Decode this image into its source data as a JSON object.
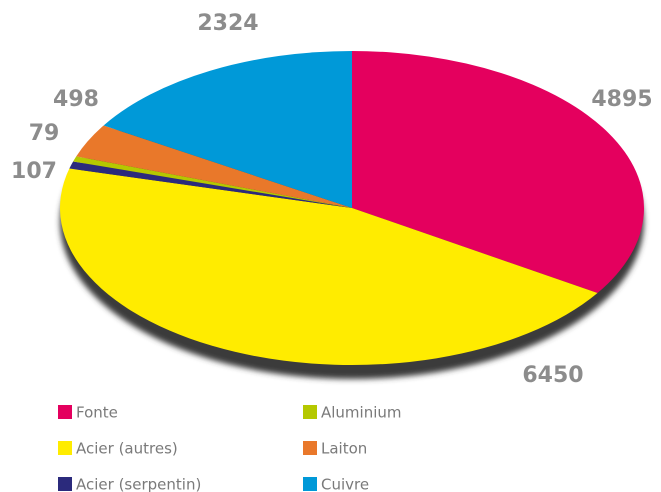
{
  "chart_data": {
    "type": "pie",
    "categories": [
      "Fonte",
      "Acier (autres)",
      "Acier (serpentin)",
      "Aluminium",
      "Laiton",
      "Cuivre"
    ],
    "values": [
      4895,
      6450,
      107,
      79,
      498,
      2324
    ],
    "colors": [
      "#e4005e",
      "#ffec00",
      "#2b2a7c",
      "#b5c800",
      "#e9782a",
      "#0099d8"
    ]
  }
}
